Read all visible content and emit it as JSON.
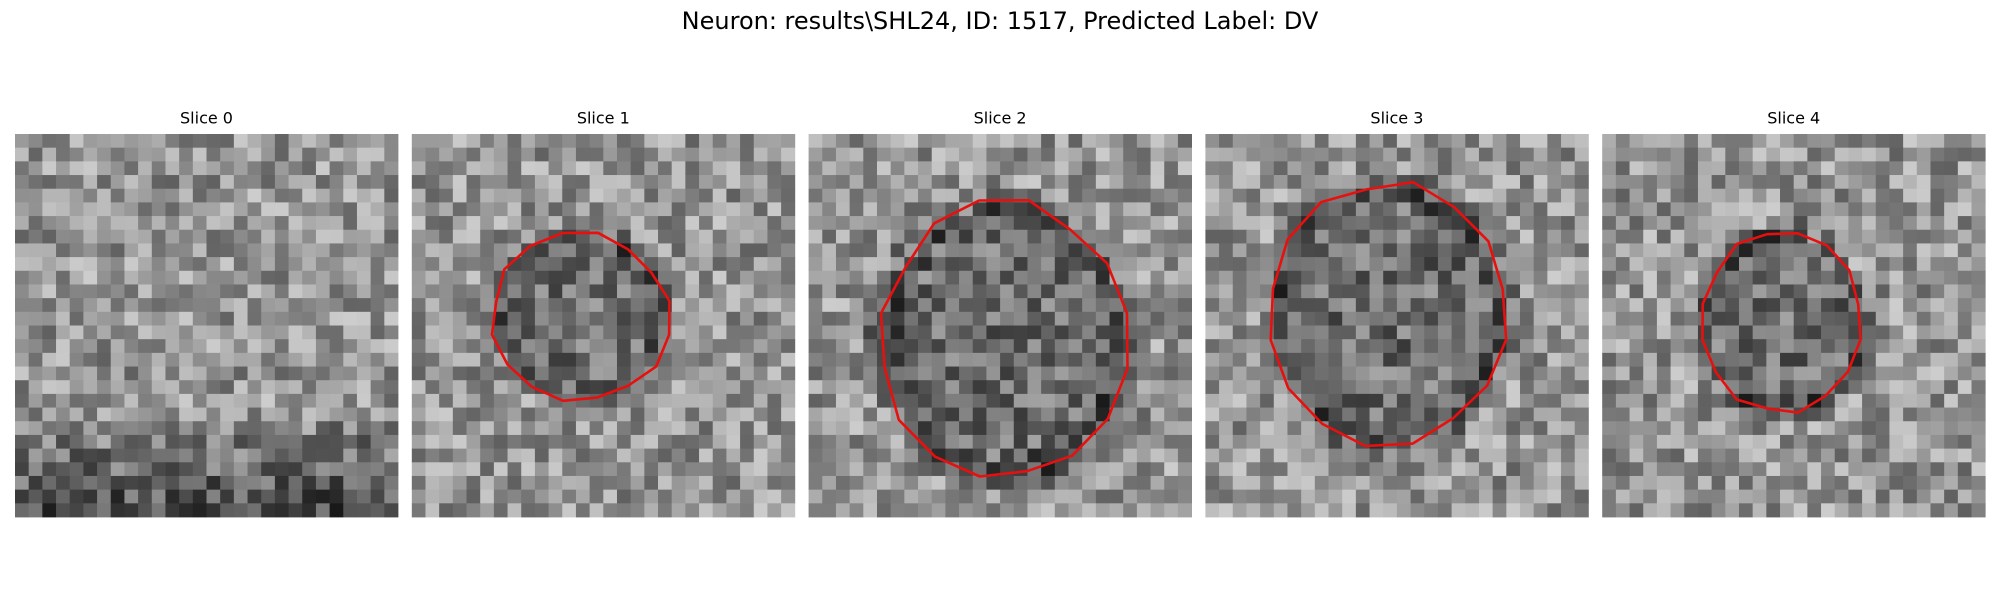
{
  "title": "Neuron: results\\SHL24, ID: 1517, Predicted Label: DV",
  "panels": [
    {
      "title": "Slice 0"
    },
    {
      "title": "Slice 1"
    },
    {
      "title": "Slice 2"
    },
    {
      "title": "Slice 3"
    },
    {
      "title": "Slice 4"
    }
  ]
}
